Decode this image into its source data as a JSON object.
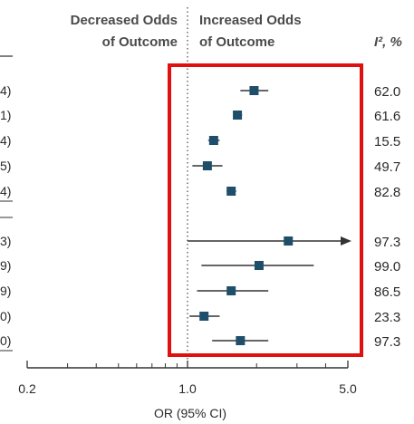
{
  "header": {
    "left_line1": "Decreased Odds",
    "left_line2": "of Outcome",
    "right_line1": "Increased Odds",
    "right_line2": "of Outcome",
    "i2_label": "I², %"
  },
  "left_labels": [
    "4)",
    "1)",
    "4)",
    "5)",
    "4)",
    "3)",
    "9)",
    "9)",
    "0)",
    "0)"
  ],
  "chart_data": {
    "type": "forest",
    "xlabel": "OR (95% CI)",
    "x_scale": "log",
    "xlim": [
      0.2,
      5.0
    ],
    "ticks": [
      "0.2",
      "1.0",
      "5.0"
    ],
    "reference_line": 1.0,
    "highlight_box_color": "#e01010",
    "marker_color": "#1f4e6b",
    "rows": [
      {
        "group": 1,
        "or": 1.95,
        "lo": 1.7,
        "hi": 2.25,
        "i2": "62.0"
      },
      {
        "group": 1,
        "or": 1.65,
        "lo": 1.58,
        "hi": 1.73,
        "i2": "61.6"
      },
      {
        "group": 1,
        "or": 1.3,
        "lo": 1.23,
        "hi": 1.38,
        "i2": "15.5"
      },
      {
        "group": 1,
        "or": 1.22,
        "lo": 1.05,
        "hi": 1.42,
        "i2": "49.7"
      },
      {
        "group": 1,
        "or": 1.55,
        "lo": 1.48,
        "hi": 1.63,
        "i2": "82.8"
      },
      {
        "group": 2,
        "or": 2.75,
        "lo": 1.0,
        "hi": 5.0,
        "arrow": true,
        "i2": "97.3"
      },
      {
        "group": 2,
        "or": 2.05,
        "lo": 1.15,
        "hi": 3.55,
        "i2": "99.0"
      },
      {
        "group": 2,
        "or": 1.55,
        "lo": 1.1,
        "hi": 2.25,
        "i2": "86.5"
      },
      {
        "group": 2,
        "or": 1.18,
        "lo": 1.02,
        "hi": 1.38,
        "i2": "23.3"
      },
      {
        "group": 2,
        "or": 1.7,
        "lo": 1.28,
        "hi": 2.25,
        "i2": "97.3"
      }
    ]
  }
}
